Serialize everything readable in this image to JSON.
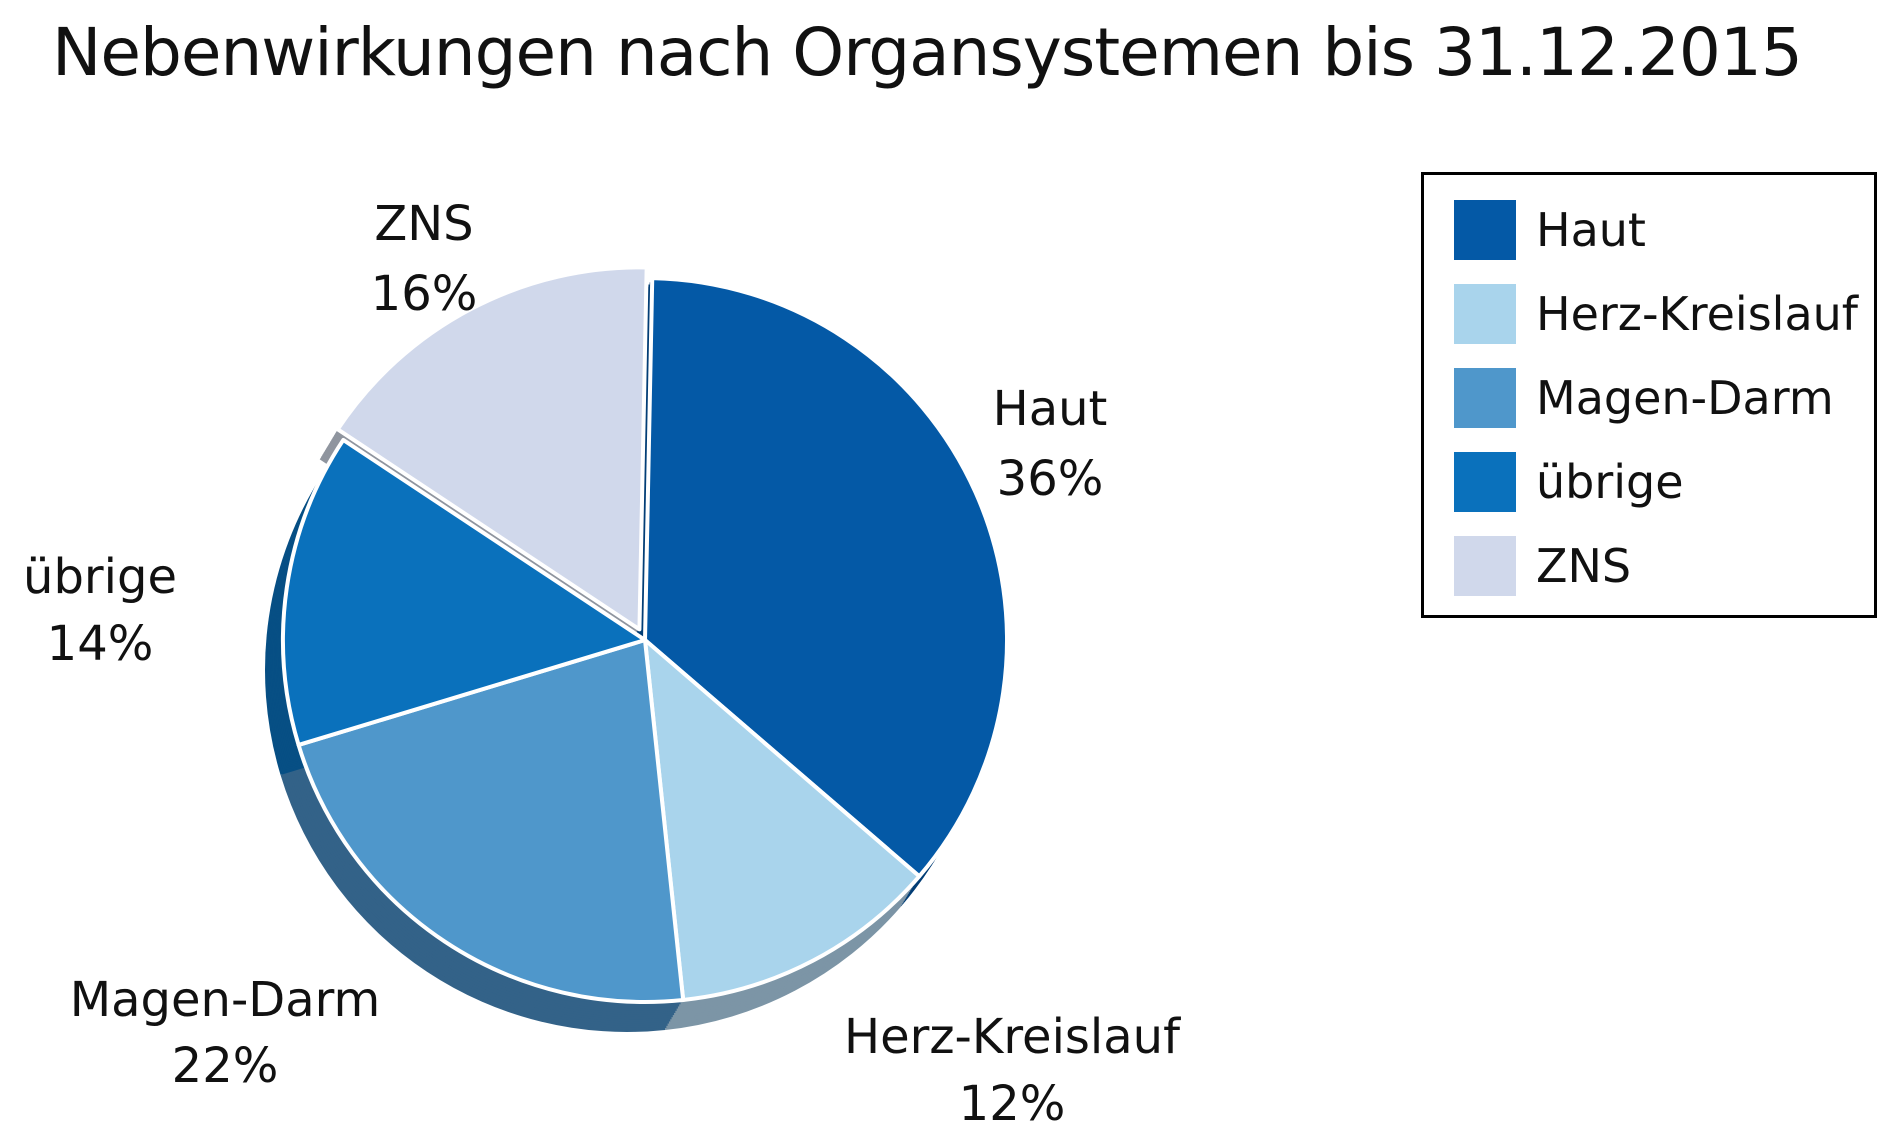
{
  "chart_data": {
    "type": "pie",
    "title": "Nebenwirkungen nach Organsystemen bis 31.12.2015",
    "slices": [
      {
        "label": "Haut",
        "value": 36,
        "value_label": "36%",
        "color": "#0459a6",
        "side_color": "#033e76"
      },
      {
        "label": "Herz-Kreislauf",
        "value": 12,
        "value_label": "12%",
        "color": "#a9d4ec",
        "side_color": "#7c95a6"
      },
      {
        "label": "Magen-Darm",
        "value": 22,
        "value_label": "22%",
        "color": "#4f97cb",
        "side_color": "#336288"
      },
      {
        "label": "übrige",
        "value": 14,
        "value_label": "14%",
        "color": "#0a71bc",
        "side_color": "#074f84"
      },
      {
        "label": "ZNS",
        "value": 16,
        "value_label": "16%",
        "color": "#d0d8eb",
        "side_color": "#8f959f"
      }
    ],
    "legend_position": "top-right",
    "legend": [
      {
        "label": "Haut",
        "color": "#0459a6"
      },
      {
        "label": "Herz-Kreislauf",
        "color": "#a9d4ec"
      },
      {
        "label": "Magen-Darm",
        "color": "#4f97cb"
      },
      {
        "label": "übrige",
        "color": "#0a71bc"
      },
      {
        "label": "ZNS",
        "color": "#d0d8eb"
      }
    ]
  }
}
